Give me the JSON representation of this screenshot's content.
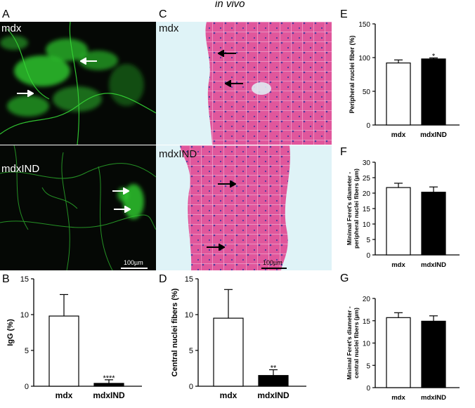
{
  "header": {
    "title": "in vivo"
  },
  "panels": {
    "A": {
      "letter": "A",
      "top_label": "mdx",
      "bottom_label": "mdxIND",
      "scale": "100µm"
    },
    "C": {
      "letter": "C",
      "top_label": "mdx",
      "bottom_label": "mdxIND",
      "scale": "100µm"
    },
    "B": {
      "letter": "B"
    },
    "D": {
      "letter": "D"
    },
    "E": {
      "letter": "E"
    },
    "F": {
      "letter": "F"
    },
    "G": {
      "letter": "G"
    }
  },
  "colors": {
    "fluor_green": "#2ecc2e",
    "he_pink": "#e0579c",
    "he_nuclei": "#4b3aa0",
    "bar_filled": "#000000",
    "bar_empty": "#ffffff"
  },
  "chart_data": [
    {
      "id": "B",
      "type": "bar",
      "categories": [
        "mdx",
        "mdxIND"
      ],
      "values": [
        9.8,
        0.4
      ],
      "errors": [
        3.0,
        0.5
      ],
      "significance": [
        "",
        "****"
      ],
      "ylabel": "IgG (%)",
      "ylim": [
        0,
        15
      ],
      "yticks": [
        0,
        5,
        10,
        15
      ]
    },
    {
      "id": "D",
      "type": "bar",
      "categories": [
        "mdx",
        "mdxIND"
      ],
      "values": [
        9.5,
        1.5
      ],
      "errors": [
        4.0,
        0.8
      ],
      "significance": [
        "",
        "**"
      ],
      "ylabel": "Central nuclei fibers (%)",
      "ylim": [
        0,
        15
      ],
      "yticks": [
        0,
        5,
        10,
        15
      ]
    },
    {
      "id": "E",
      "type": "bar",
      "categories": [
        "mdx",
        "mdxIND"
      ],
      "values": [
        92,
        98
      ],
      "errors": [
        4.5,
        1.5
      ],
      "significance": [
        "",
        "*"
      ],
      "ylabel": "Peripheral nuclei fiber (%)",
      "ylim": [
        0,
        150
      ],
      "yticks": [
        0,
        50,
        100,
        150
      ]
    },
    {
      "id": "F",
      "type": "bar",
      "categories": [
        "mdx",
        "mdxIND"
      ],
      "values": [
        21.8,
        20.3
      ],
      "errors": [
        1.4,
        1.7
      ],
      "significance": [
        "",
        ""
      ],
      "ylabel": "Minimal Feret's diameter -",
      "ylabel2": "peripheral nuclei fibers (µm)",
      "ylim": [
        0,
        30
      ],
      "yticks": [
        0,
        5,
        10,
        15,
        20,
        25,
        30
      ]
    },
    {
      "id": "G",
      "type": "bar",
      "categories": [
        "mdx",
        "mdxIND"
      ],
      "values": [
        15.7,
        14.9
      ],
      "errors": [
        1.1,
        1.2
      ],
      "significance": [
        "",
        ""
      ],
      "ylabel": "Minimal Feret's diameter -",
      "ylabel2": "central nuclei fibers (µm)",
      "ylim": [
        0,
        20
      ],
      "yticks": [
        0,
        5,
        10,
        15,
        20
      ]
    }
  ]
}
